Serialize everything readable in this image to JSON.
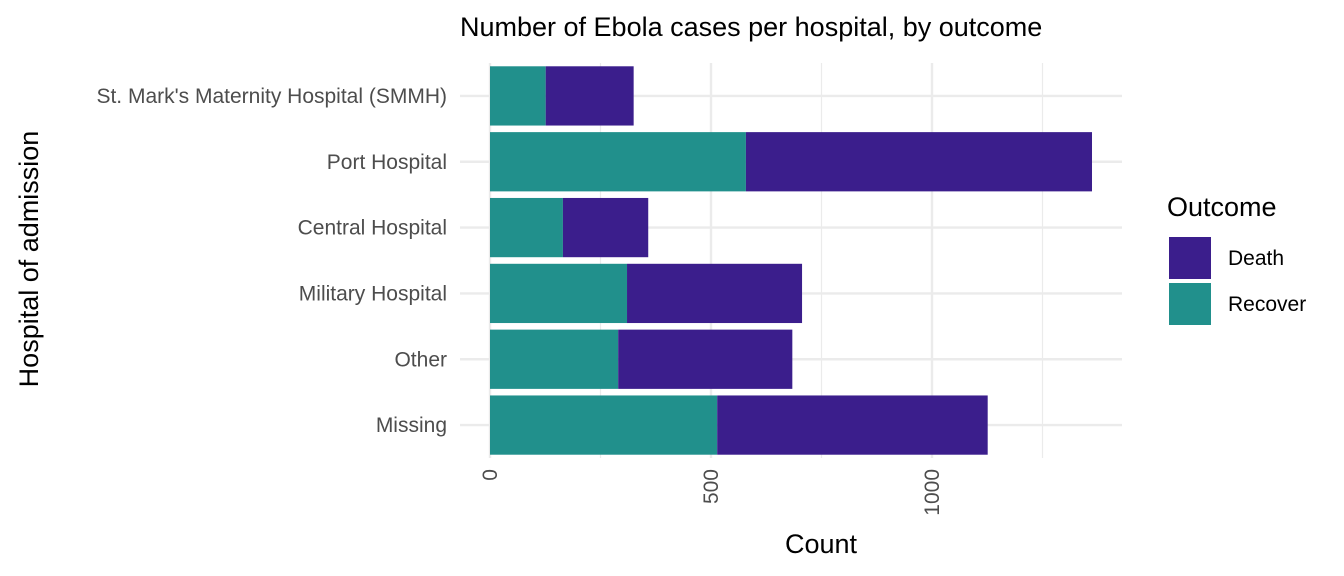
{
  "chart_data": {
    "type": "bar",
    "orientation": "horizontal",
    "stacked": true,
    "title": "Number of Ebola cases per hospital, by outcome",
    "xlabel": "Count",
    "ylabel": "Hospital of admission",
    "categories": [
      "St. Mark's Maternity Hospital (SMMH)",
      "Port Hospital",
      "Central Hospital",
      "Military Hospital",
      "Other",
      "Missing"
    ],
    "series": [
      {
        "name": "Recover",
        "color": "#21908C",
        "values": [
          126,
          579,
          165,
          310,
          290,
          514
        ]
      },
      {
        "name": "Death",
        "color": "#3B1E8C",
        "values": [
          199,
          783,
          193,
          396,
          394,
          612
        ]
      }
    ],
    "xlim": [
      0,
      1362
    ],
    "x_ticks": [
      0,
      500,
      1000
    ],
    "x_tick_labels": [
      "0",
      "500",
      "1000"
    ],
    "x_tick_rotation": -90,
    "grid": true,
    "legend": {
      "title": "Outcome",
      "position": "right",
      "entries": [
        {
          "label": "Death",
          "color": "#3B1E8C"
        },
        {
          "label": "Recover",
          "color": "#21908C"
        }
      ]
    }
  }
}
